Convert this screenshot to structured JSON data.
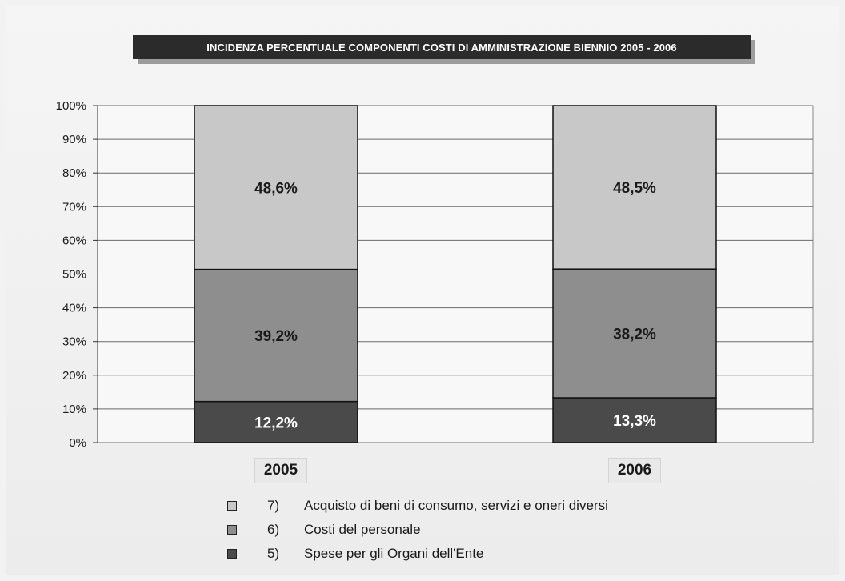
{
  "title": "INCIDENZA PERCENTUALE COMPONENTI COSTI DI AMMINISTRAZIONE BIENNIO 2005 - 2006",
  "colors": {
    "series_7": "#c8c8c8",
    "series_6": "#8e8e8e",
    "series_5": "#4a4a4a",
    "label_dark": "#1a1a1a",
    "label_light": "#ffffff"
  },
  "legend": [
    {
      "num": "7)",
      "text": "Acquisto di beni di consumo, servizi e oneri diversi",
      "color_key": "series_7"
    },
    {
      "num": "6)",
      "text": "Costi del personale",
      "color_key": "series_6"
    },
    {
      "num": "5)",
      "text": "Spese per gli Organi dell'Ente",
      "color_key": "series_5"
    }
  ],
  "chart_data": {
    "type": "bar",
    "stacked": true,
    "title": "INCIDENZA PERCENTUALE COMPONENTI COSTI DI AMMINISTRAZIONE BIENNIO 2005 - 2006",
    "categories": [
      "2005",
      "2006"
    ],
    "series": [
      {
        "name": "5) Spese per gli Organi dell'Ente",
        "values": [
          12.2,
          13.3
        ],
        "labels": [
          "12,2%",
          "13,3%"
        ]
      },
      {
        "name": "6) Costi del personale",
        "values": [
          39.2,
          38.2
        ],
        "labels": [
          "39,2%",
          "38,2%"
        ]
      },
      {
        "name": "7) Acquisto di beni di consumo, servizi e oneri diversi",
        "values": [
          48.6,
          48.5
        ],
        "labels": [
          "48,6%",
          "48,5%"
        ]
      }
    ],
    "yticks": [
      "0%",
      "10%",
      "20%",
      "30%",
      "40%",
      "50%",
      "60%",
      "70%",
      "80%",
      "90%",
      "100%"
    ],
    "ylim": [
      0,
      100
    ],
    "grid": true,
    "legend_position": "bottom"
  }
}
